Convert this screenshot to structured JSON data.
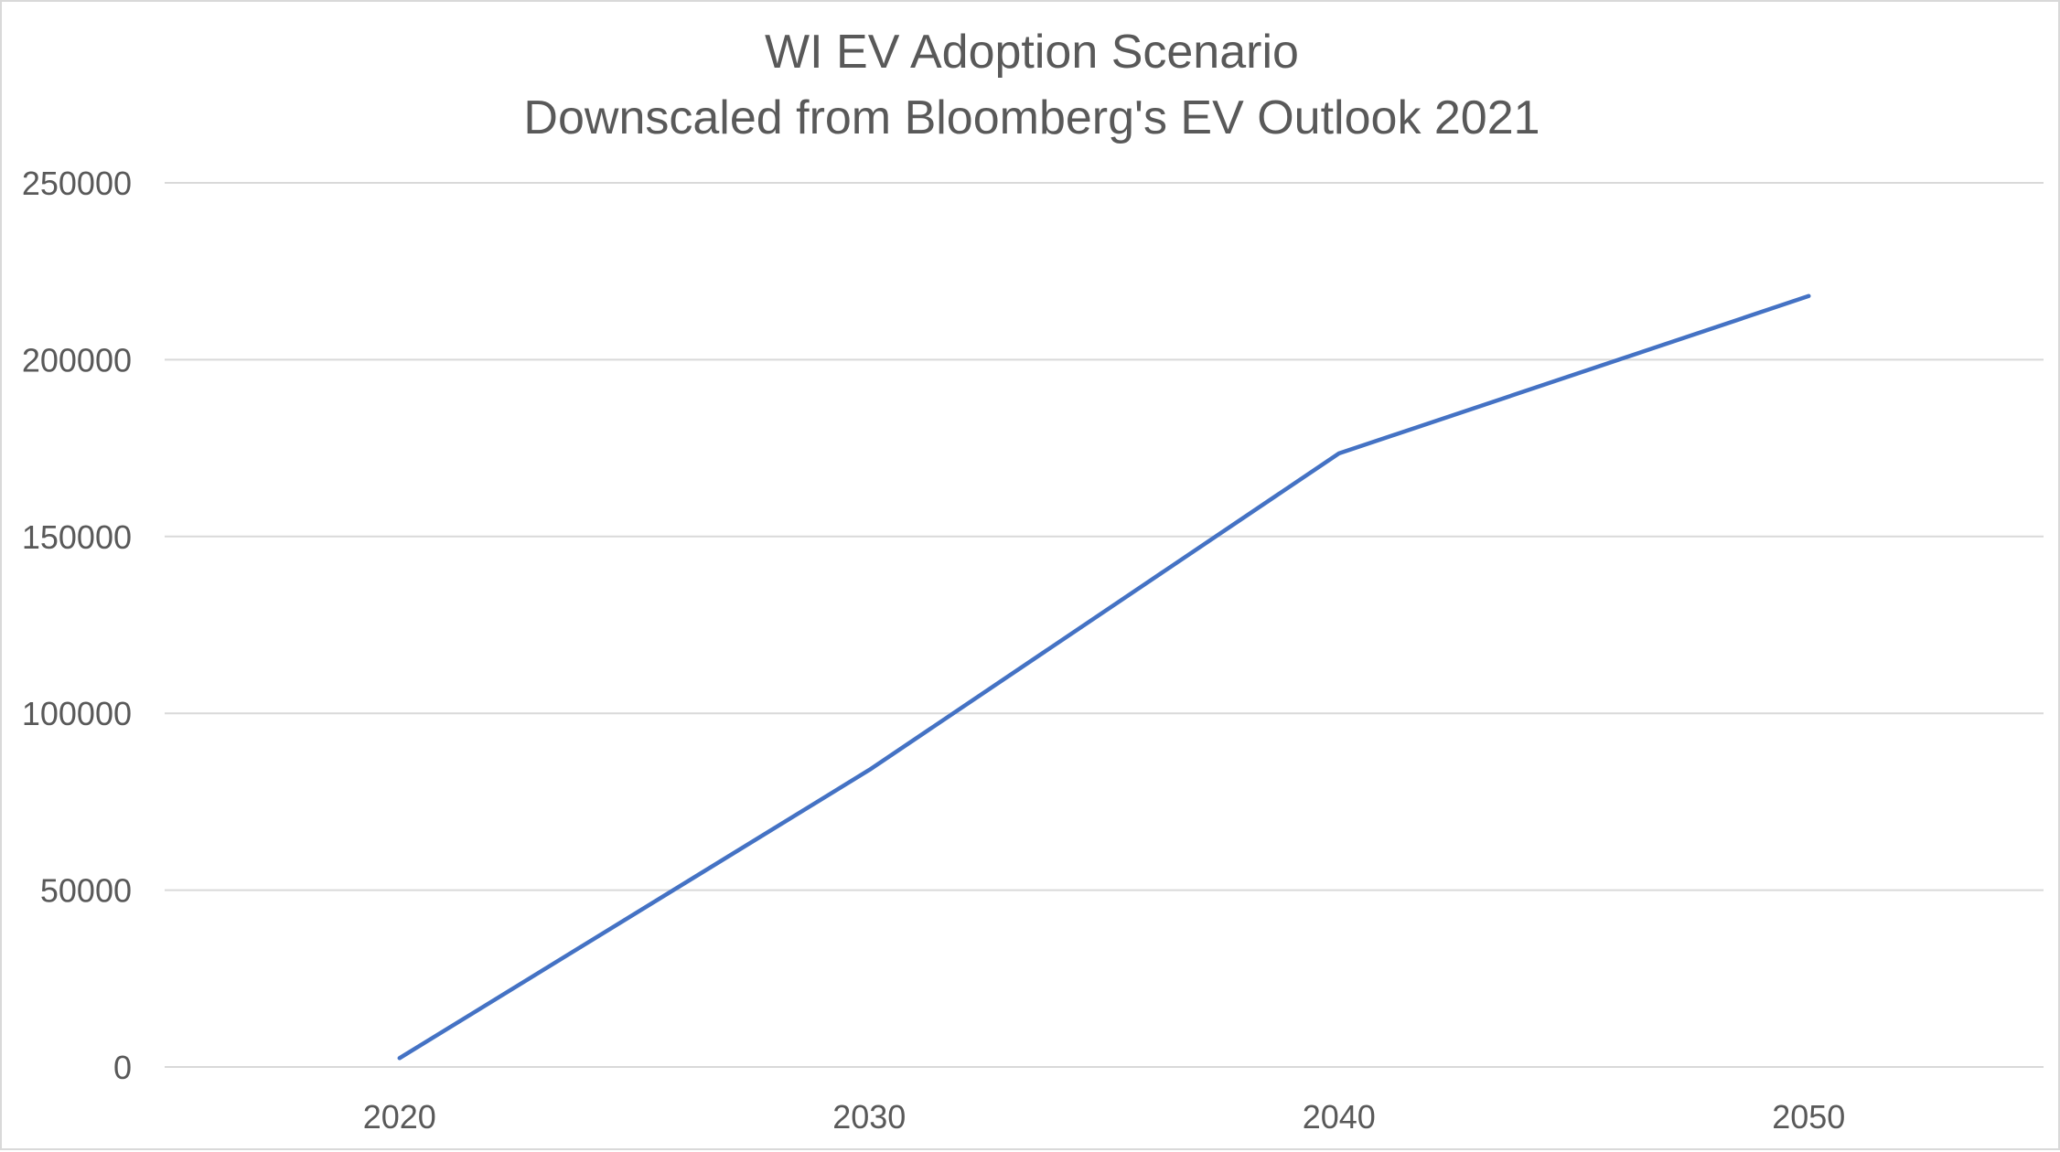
{
  "chart_data": {
    "type": "line",
    "title": [
      "WI EV Adoption Scenario",
      "Downscaled from Bloomberg's EV Outlook 2021"
    ],
    "xlabel": "",
    "ylabel": "",
    "categories": [
      "2020",
      "2030",
      "2040",
      "2050"
    ],
    "series": [
      {
        "values": [
          2500,
          84000,
          173500,
          218000
        ],
        "color": "#4472c4"
      }
    ],
    "ylim": [
      0,
      250000
    ],
    "yticks": [
      0,
      50000,
      100000,
      150000,
      200000,
      250000
    ],
    "grid": true,
    "legend": "none"
  }
}
